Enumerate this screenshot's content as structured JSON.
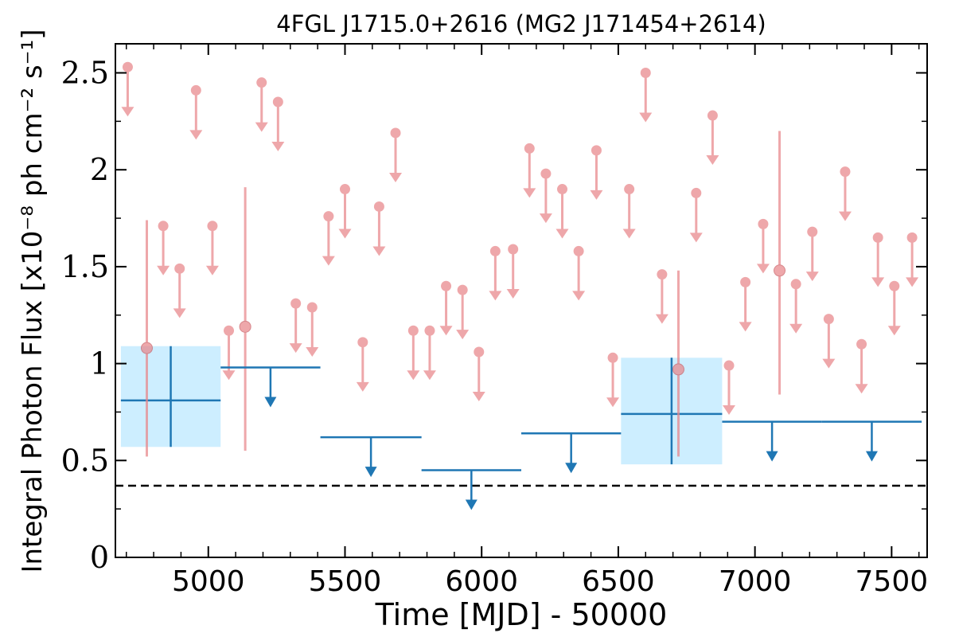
{
  "chart_data": {
    "type": "scatter",
    "title": "4FGL J1715.0+2616 (MG2 J171454+2614)",
    "xlabel": "Time [MJD] - 50000",
    "ylabel": "Integral Photon Flux [x10⁻⁸ ph cm⁻² s⁻¹]",
    "xlim": [
      4660,
      7630
    ],
    "ylim": [
      0,
      2.65
    ],
    "xticks": [
      5000,
      5500,
      6000,
      6500,
      7000,
      7500
    ],
    "xtick_labels": [
      "5000",
      "5500",
      "6000",
      "6500",
      "7000",
      "7500"
    ],
    "yticks": [
      0,
      0.5,
      1,
      1.5,
      2,
      2.5
    ],
    "ytick_labels": [
      "0",
      "0.5",
      "1",
      "1.5",
      "2",
      "2.5"
    ],
    "grid": false,
    "colors": {
      "short_bins": "#e8868a",
      "long_bins": "#1f77b4",
      "long_bins_fill": "#cdeeff",
      "reference_line": "#000000"
    },
    "series": [
      {
        "kind": "upper_limits",
        "color": "#e8868a",
        "points": [
          {
            "x": 4705,
            "y": 2.53
          },
          {
            "x": 4835,
            "y": 1.71
          },
          {
            "x": 4895,
            "y": 1.49
          },
          {
            "x": 4955,
            "y": 2.41
          },
          {
            "x": 5015,
            "y": 1.71
          },
          {
            "x": 5075,
            "y": 1.17
          },
          {
            "x": 5195,
            "y": 2.45
          },
          {
            "x": 5255,
            "y": 2.35
          },
          {
            "x": 5320,
            "y": 1.31
          },
          {
            "x": 5380,
            "y": 1.29
          },
          {
            "x": 5440,
            "y": 1.76
          },
          {
            "x": 5500,
            "y": 1.9
          },
          {
            "x": 5565,
            "y": 1.11
          },
          {
            "x": 5625,
            "y": 1.81
          },
          {
            "x": 5685,
            "y": 2.19
          },
          {
            "x": 5750,
            "y": 1.17
          },
          {
            "x": 5810,
            "y": 1.17
          },
          {
            "x": 5870,
            "y": 1.4
          },
          {
            "x": 5930,
            "y": 1.38
          },
          {
            "x": 5990,
            "y": 1.06
          },
          {
            "x": 6050,
            "y": 1.58
          },
          {
            "x": 6115,
            "y": 1.59
          },
          {
            "x": 6175,
            "y": 2.11
          },
          {
            "x": 6235,
            "y": 1.98
          },
          {
            "x": 6295,
            "y": 1.9
          },
          {
            "x": 6355,
            "y": 1.58
          },
          {
            "x": 6420,
            "y": 2.1
          },
          {
            "x": 6480,
            "y": 1.03
          },
          {
            "x": 6540,
            "y": 1.9
          },
          {
            "x": 6600,
            "y": 2.5
          },
          {
            "x": 6660,
            "y": 1.46
          },
          {
            "x": 6785,
            "y": 1.88
          },
          {
            "x": 6845,
            "y": 2.28
          },
          {
            "x": 6905,
            "y": 0.99
          },
          {
            "x": 6965,
            "y": 1.42
          },
          {
            "x": 7030,
            "y": 1.72
          },
          {
            "x": 7150,
            "y": 1.41
          },
          {
            "x": 7210,
            "y": 1.68
          },
          {
            "x": 7270,
            "y": 1.23
          },
          {
            "x": 7330,
            "y": 1.99
          },
          {
            "x": 7390,
            "y": 1.1
          },
          {
            "x": 7450,
            "y": 1.65
          },
          {
            "x": 7510,
            "y": 1.4
          },
          {
            "x": 7575,
            "y": 1.65
          }
        ]
      },
      {
        "kind": "detections",
        "color": "#e8868a",
        "points": [
          {
            "x": 4775,
            "y": 1.08,
            "ylo": 0.52,
            "yhi": 1.74
          },
          {
            "x": 5135,
            "y": 1.19,
            "ylo": 0.55,
            "yhi": 1.91
          },
          {
            "x": 6720,
            "y": 0.97,
            "ylo": 0.52,
            "yhi": 1.48
          },
          {
            "x": 7090,
            "y": 1.48,
            "ylo": 0.84,
            "yhi": 2.2
          }
        ]
      },
      {
        "kind": "long_upper_limits",
        "color": "#1f77b4",
        "points": [
          {
            "x0": 5045,
            "x1": 5410,
            "y": 0.98
          },
          {
            "x0": 5410,
            "x1": 5780,
            "y": 0.62
          },
          {
            "x0": 5780,
            "x1": 6145,
            "y": 0.45
          },
          {
            "x0": 6145,
            "x1": 6510,
            "y": 0.64
          },
          {
            "x0": 6880,
            "x1": 7245,
            "y": 0.7
          },
          {
            "x0": 7245,
            "x1": 7610,
            "y": 0.7
          }
        ]
      },
      {
        "kind": "long_detections",
        "color": "#1f77b4",
        "points": [
          {
            "x0": 4680,
            "x1": 5045,
            "y": 0.81,
            "ylo": 0.57,
            "yhi": 1.09
          },
          {
            "x0": 6510,
            "x1": 6880,
            "y": 0.74,
            "ylo": 0.48,
            "yhi": 1.03
          }
        ]
      }
    ],
    "reference_line": {
      "y": 0.37,
      "style": "dashed"
    }
  }
}
